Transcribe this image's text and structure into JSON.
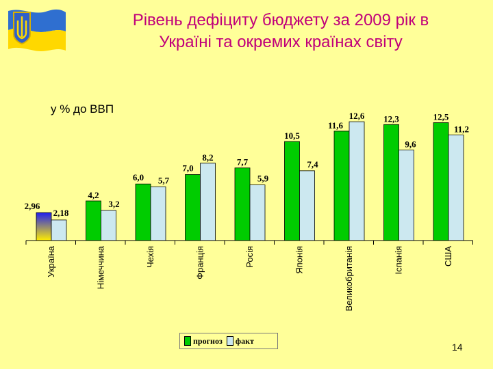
{
  "slide": {
    "title_line1": "Рівень дефіциту бюджету за 2009 рік в",
    "title_line2": "Україні та окремих країнах світу",
    "page_number": "14"
  },
  "chart_data": {
    "type": "bar",
    "subtitle": "у % до ВВП",
    "categories": [
      "Україна",
      "Німеччина",
      "Чехія",
      "Франція",
      "Росія",
      "Японія",
      "Великобританія",
      "Іспанія",
      "США"
    ],
    "series": [
      {
        "name": "прогноз",
        "values": [
          2.96,
          4.2,
          6.0,
          7.0,
          7.7,
          10.5,
          11.6,
          12.3,
          12.5
        ],
        "labels": [
          "2,96",
          "4,2",
          "6,0",
          "7,0",
          "7,7",
          "10,5",
          "11,6",
          "12,3",
          "12,5"
        ],
        "color": "#00cc00"
      },
      {
        "name": "факт",
        "values": [
          2.18,
          3.2,
          5.7,
          8.2,
          5.9,
          7.4,
          12.6,
          9.6,
          11.2
        ],
        "labels": [
          "2,18",
          "3,2",
          "5,7",
          "8,2",
          "5,9",
          "7,4",
          "12,6",
          "9,6",
          "11,2"
        ],
        "color": "#cce8f0"
      }
    ],
    "ukraine_forecast_bar_gradient": [
      "#2020ee",
      "#ffee00"
    ],
    "ylim": [
      0,
      14
    ],
    "grid": false,
    "legend": "bottom"
  }
}
